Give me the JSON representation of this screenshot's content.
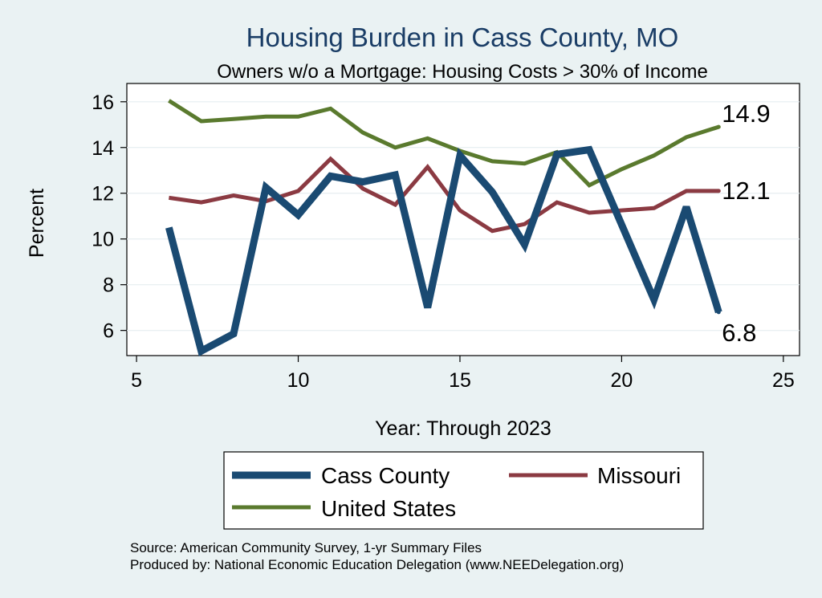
{
  "chart_data": {
    "type": "line",
    "title": "Housing Burden in Cass County, MO",
    "subtitle": "Owners w/o a Mortgage: Housing Costs > 30% of Income",
    "xlabel": "Year: Through 2023",
    "ylabel": "Percent",
    "xlim": [
      4.7,
      25.5
    ],
    "ylim": [
      4.9,
      16.8
    ],
    "xticks": [
      5,
      10,
      15,
      20,
      25
    ],
    "yticks": [
      6,
      8,
      10,
      12,
      14,
      16
    ],
    "grid": true,
    "series": [
      {
        "name": "Cass County",
        "color": "#1a4a72",
        "x": [
          6,
          7,
          8,
          9,
          10,
          11,
          12,
          13,
          14,
          15,
          16,
          17,
          18,
          19,
          21,
          22,
          23
        ],
        "y": [
          10.5,
          5.1,
          5.85,
          12.25,
          11.05,
          12.75,
          12.5,
          12.8,
          7.0,
          13.65,
          12.05,
          9.75,
          13.7,
          13.9,
          7.35,
          11.4,
          6.8
        ]
      },
      {
        "name": "Missouri",
        "color": "#8b3a42",
        "x": [
          6,
          7,
          8,
          9,
          10,
          11,
          12,
          13,
          14,
          15,
          16,
          17,
          18,
          19,
          20,
          21,
          22,
          23
        ],
        "y": [
          11.8,
          11.6,
          11.9,
          11.65,
          12.1,
          13.5,
          12.2,
          11.5,
          13.15,
          11.25,
          10.35,
          10.65,
          11.6,
          11.15,
          11.25,
          11.35,
          12.1,
          12.1
        ]
      },
      {
        "name": "United States",
        "color": "#5a7a2e",
        "x": [
          6,
          7,
          8,
          9,
          10,
          11,
          12,
          13,
          14,
          15,
          16,
          17,
          18,
          19,
          20,
          21,
          22,
          23
        ],
        "y": [
          16.05,
          15.15,
          15.25,
          15.35,
          15.35,
          15.7,
          14.65,
          14.0,
          14.4,
          13.85,
          13.4,
          13.3,
          13.8,
          12.35,
          13.05,
          13.65,
          14.45,
          14.9
        ]
      }
    ],
    "end_labels": [
      "6.8",
      "12.1",
      "14.9"
    ],
    "legend": {
      "placement": "bottom",
      "entries": [
        "Cass County",
        "Missouri",
        "United States"
      ]
    }
  },
  "source_line": "Source: American Community Survey, 1-yr Summary Files",
  "produced_line": "Produced by: National Economic Education Delegation (www.NEEDelegation.org)"
}
